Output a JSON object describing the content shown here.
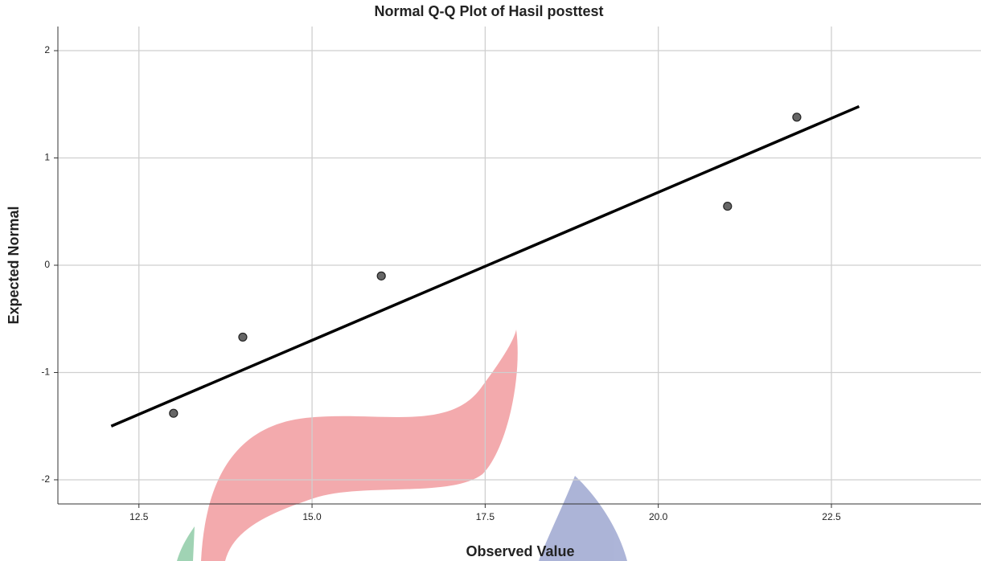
{
  "chart_data": {
    "type": "scatter",
    "title": "Normal Q-Q Plot of Hasil posttest",
    "x_label": "Observed Value",
    "y_label": "Expected Normal",
    "x": [
      13,
      14,
      16,
      21,
      22
    ],
    "values": [
      -1.38,
      -0.67,
      -0.1,
      0.55,
      1.38
    ],
    "color": "#666666",
    "reference_line": {
      "x": [
        12.1,
        22.9
      ],
      "y": [
        -1.5,
        1.48
      ],
      "color": "#000000"
    },
    "xlim": [
      11.33,
      24.66
    ],
    "ylim": [
      -2.225,
      2.225
    ],
    "xticks": [
      12.5,
      {
        "value": 15,
        "label": "15.0"
      },
      17.5,
      {
        "value": 20,
        "label": "20.0"
      },
      22.5
    ],
    "yticks": [
      -2,
      -1,
      0,
      1,
      2
    ],
    "grid": true
  }
}
